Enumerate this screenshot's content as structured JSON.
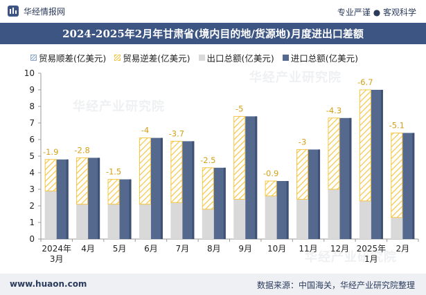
{
  "header": {
    "brand_name": "华经情报网",
    "tagline": "专业严谨 ● 客观科学"
  },
  "title": "2024-2025年2月年甘肃省(境内目的地/货源地)月度进出口差额",
  "legend": {
    "surplus": "贸易顺差(亿美元)",
    "deficit": "贸易逆差(亿美元)",
    "export": "出口总额(亿美元)",
    "import": "进口总额(亿美元)"
  },
  "colors": {
    "surplus_swatch": "#8ea7c9",
    "deficit": "#f5c542",
    "export": "#d9d9d9",
    "import": "#55698f",
    "label": "#d4a017",
    "title_bg": "#3d5583"
  },
  "watermark": "华经产业研究院",
  "chart_data": {
    "type": "bar",
    "categories": [
      "2024年\n3月",
      "4月",
      "5月",
      "6月",
      "7月",
      "8月",
      "9月",
      "10月",
      "11月",
      "12月",
      "2025年\n1月",
      "2月"
    ],
    "ylim": [
      0,
      10
    ],
    "yticks": [
      0,
      1,
      2,
      3,
      4,
      5,
      6,
      7,
      8,
      9,
      10
    ],
    "series": [
      {
        "name": "出口总额(亿美元)",
        "values": [
          2.9,
          2.1,
          2.1,
          2.1,
          2.2,
          1.8,
          2.4,
          2.6,
          2.4,
          3.0,
          2.3,
          1.3
        ]
      },
      {
        "name": "进口总额(亿美元)",
        "values": [
          4.8,
          4.9,
          3.6,
          6.1,
          5.9,
          4.3,
          7.4,
          3.5,
          5.4,
          7.3,
          9.0,
          6.4
        ]
      },
      {
        "name": "贸易逆差(亿美元)",
        "values": [
          -1.9,
          -2.8,
          -1.5,
          -4,
          -3.7,
          -2.5,
          -5,
          -0.9,
          -3,
          -4.3,
          -6.7,
          -5.1
        ]
      }
    ],
    "data_labels": [
      "-1.9",
      "-2.8",
      "-1.5",
      "-4",
      "-3.7",
      "-2.5",
      "-5",
      "-0.9",
      "-3",
      "-4.3",
      "-6.7",
      "-5.1"
    ]
  },
  "footer": {
    "website": "www.huaon.com",
    "source": "数据来源：中国海关，华经产业研究院整理"
  }
}
